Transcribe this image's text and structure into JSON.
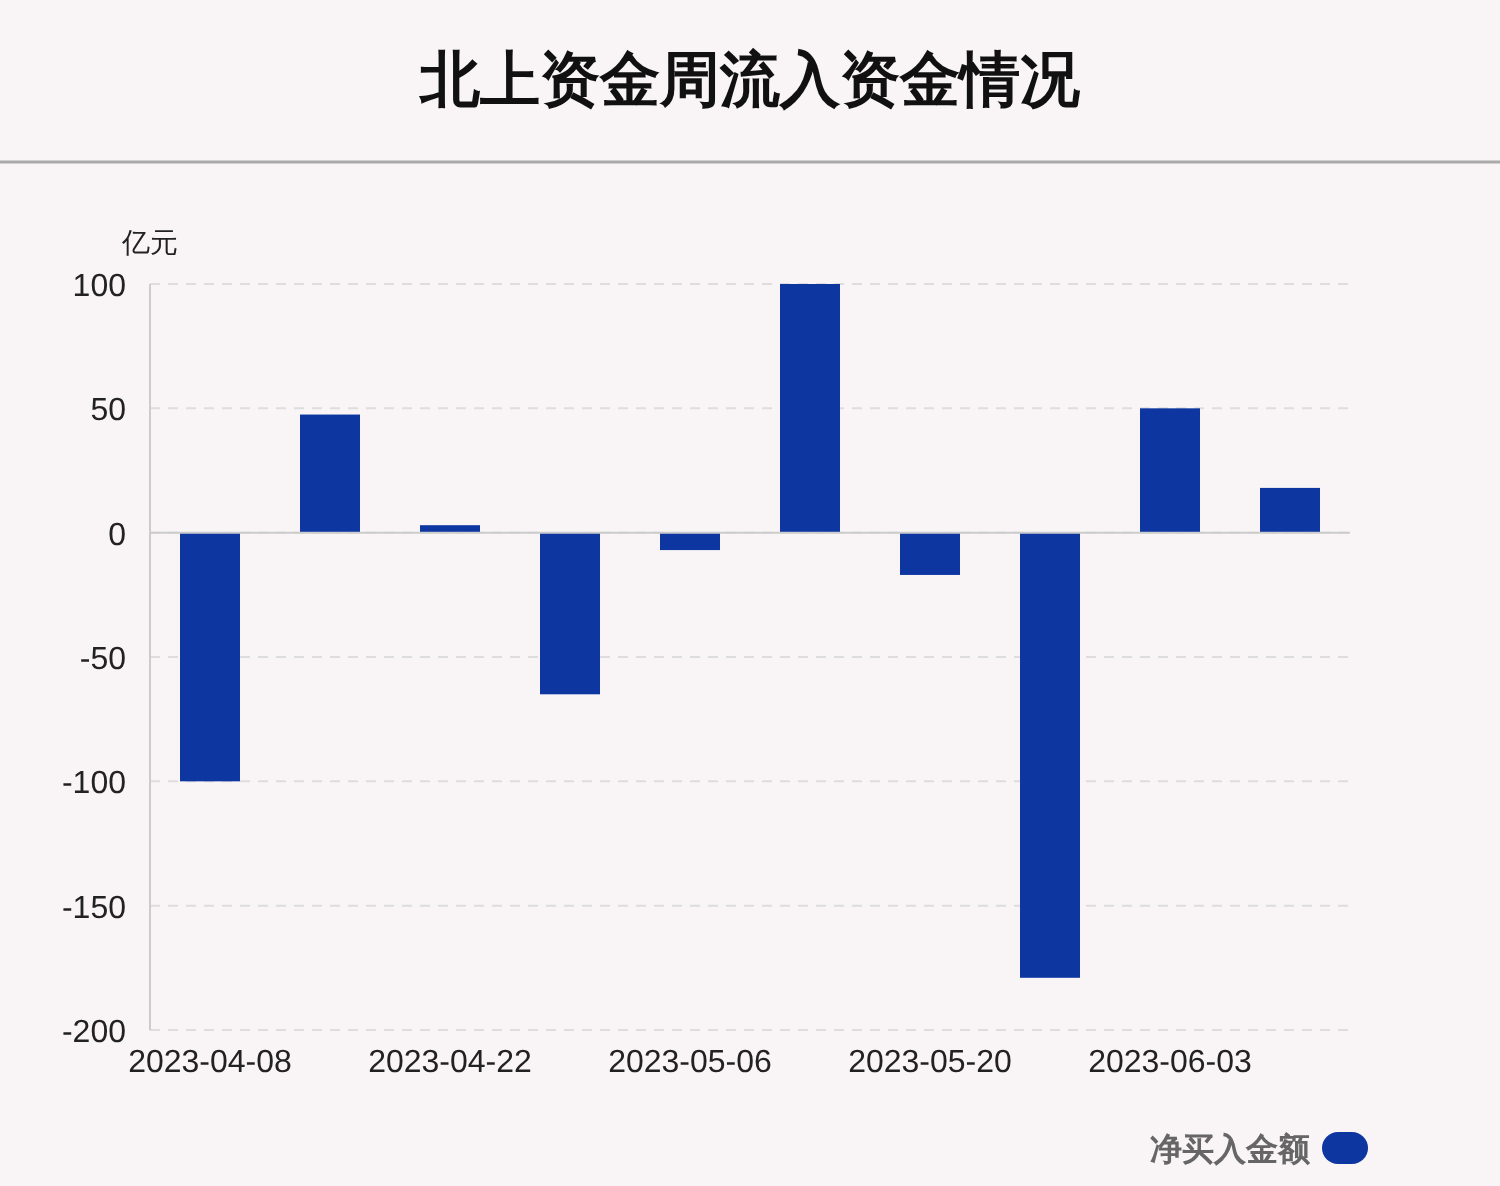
{
  "chart_data": {
    "type": "bar",
    "title": "北上资金周流入资金情况",
    "ylabel": "亿元",
    "categories": [
      "2023-04-08",
      null,
      "2023-04-22",
      null,
      "2023-05-06",
      null,
      "2023-05-20",
      null,
      "2023-06-03",
      null
    ],
    "series": [
      {
        "name": "净买入金额",
        "color": "#0d36a0",
        "values": [
          -100,
          47.5,
          3,
          -65,
          -7,
          100,
          -17,
          -179,
          50,
          18
        ]
      }
    ],
    "ylim": [
      -200,
      100
    ],
    "yticks": [
      -200,
      -150,
      -100,
      -50,
      0,
      50,
      100
    ],
    "grid": "y",
    "legend": "bottom right"
  }
}
